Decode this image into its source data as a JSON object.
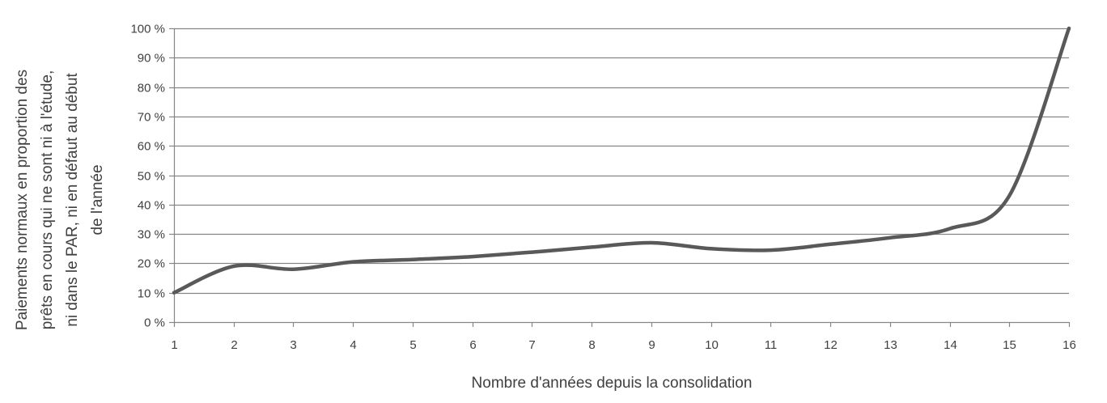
{
  "chart_data": {
    "type": "line",
    "title": "",
    "xlabel": "Nombre d'années depuis la consolidation",
    "ylabel_lines": [
      "Paiements normaux en proportion des",
      "prêts en cours qui ne sont ni à l'étude,",
      "ni dans le PAR, ni en défaut au début",
      "de l'année"
    ],
    "x": [
      1,
      2,
      3,
      4,
      5,
      6,
      7,
      8,
      9,
      10,
      11,
      12,
      13,
      14,
      15,
      16
    ],
    "x_tick_labels": [
      "1",
      "2",
      "3",
      "4",
      "5",
      "6",
      "7",
      "8",
      "9",
      "10",
      "11",
      "12",
      "13",
      "14",
      "15",
      "16"
    ],
    "y_tick_values": [
      0,
      10,
      20,
      30,
      40,
      50,
      60,
      70,
      80,
      90,
      100
    ],
    "y_tick_labels": [
      "0 %",
      "10 %",
      "20 %",
      "30 %",
      "40 %",
      "50 %",
      "60 %",
      "70 %",
      "80 %",
      "90 %",
      "100 %"
    ],
    "ylim": [
      0,
      100
    ],
    "xlim": [
      1,
      16
    ],
    "grid": true,
    "line_color": "#595959",
    "grid_color": "#868686",
    "series": [
      {
        "values": [
          10,
          19,
          18,
          20.5,
          21.3,
          22.3,
          23.8,
          25.5,
          27,
          25,
          24.5,
          26.5,
          28.7,
          31.8,
          43,
          100
        ]
      }
    ]
  }
}
